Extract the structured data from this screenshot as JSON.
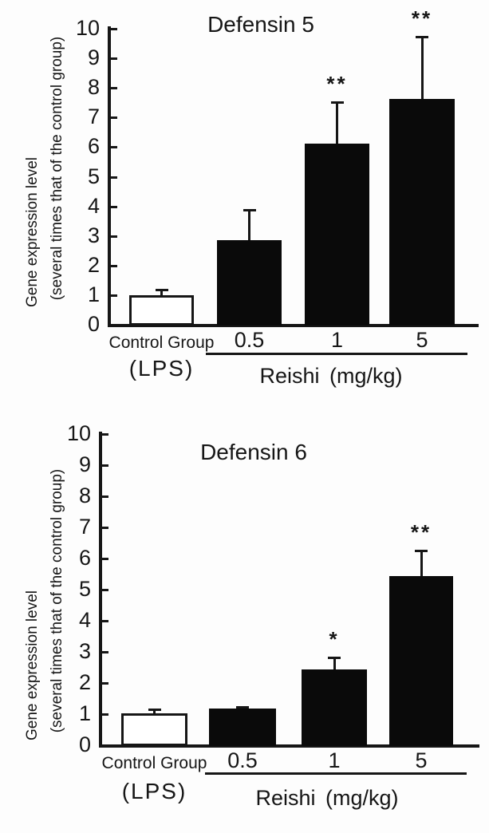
{
  "figure": {
    "background": "#fdfdfd",
    "ink": "#161616"
  },
  "chart_data": [
    {
      "type": "bar",
      "title": "Defensin 5",
      "ylabel": "Gene expression level",
      "ylabel_sub": "(several times that of the control group)",
      "xlabel": "",
      "ylim": [
        0,
        10
      ],
      "yticks": [
        0,
        1,
        2,
        3,
        4,
        5,
        6,
        7,
        8,
        9,
        10
      ],
      "grid": false,
      "legend": "none",
      "categories": [
        "Control Group",
        "0.5",
        "1",
        "5"
      ],
      "control_sublabel": "(LPS)",
      "treatment_axis_label": "Reishi (mg/kg)",
      "values": [
        0.97,
        2.83,
        6.1,
        7.6
      ],
      "errors_upper": [
        0.22,
        1.05,
        1.43,
        2.13
      ],
      "significance": [
        "",
        "",
        "**",
        "**"
      ],
      "bar_fills": [
        "#ffffff",
        "#0a0a0a",
        "#0a0a0a",
        "#0a0a0a"
      ]
    },
    {
      "type": "bar",
      "title": "Defensin 6",
      "ylabel": "Gene expression level",
      "ylabel_sub": "(several times that of the control group)",
      "xlabel": "",
      "ylim": [
        0,
        10
      ],
      "yticks": [
        0,
        1,
        2,
        3,
        4,
        5,
        6,
        7,
        8,
        9,
        10
      ],
      "grid": false,
      "legend": "none",
      "categories": [
        "Control Group",
        "0.5",
        "1",
        "5"
      ],
      "control_sublabel": "(LPS)",
      "treatment_axis_label": "Reishi (mg/kg)",
      "values": [
        1.0,
        1.15,
        2.4,
        5.4
      ],
      "errors_upper": [
        0.16,
        0.07,
        0.42,
        0.86
      ],
      "significance": [
        "",
        "",
        "*",
        "**"
      ],
      "bar_fills": [
        "#ffffff",
        "#0a0a0a",
        "#0a0a0a",
        "#0a0a0a"
      ]
    }
  ]
}
